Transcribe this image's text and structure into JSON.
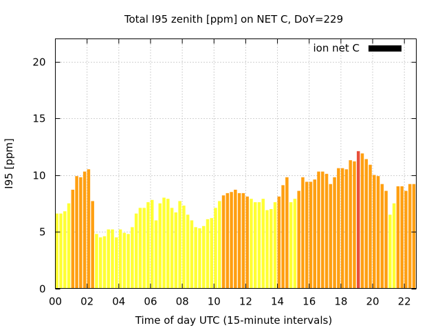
{
  "chart_data": {
    "type": "bar",
    "title": "Total I95 zenith [ppm] on NET C, DoY=229",
    "xlabel": "Time of day UTC (15-minute intervals)",
    "ylabel": "I95 [ppm]",
    "ylim": [
      0,
      22
    ],
    "xlim": [
      0,
      22.75
    ],
    "yticks": [
      0,
      5,
      10,
      15,
      20
    ],
    "xticks": [
      0,
      2,
      4,
      6,
      8,
      10,
      12,
      14,
      16,
      18,
      20,
      22
    ],
    "xtick_labels": [
      "00",
      "02",
      "04",
      "06",
      "08",
      "10",
      "12",
      "14",
      "16",
      "18",
      "20",
      "22"
    ],
    "grid": true,
    "legend": {
      "position": "top-right",
      "label": "ion net C",
      "color": "#000000"
    },
    "bar_interval_hours": 0.25,
    "colors": {
      "low": "#ffff33",
      "mid": "#ff9f11",
      "high": "#e8503a"
    },
    "times": [
      0.0,
      0.25,
      0.5,
      0.75,
      1.0,
      1.25,
      1.5,
      1.75,
      2.0,
      2.25,
      2.5,
      2.75,
      3.0,
      3.25,
      3.5,
      3.75,
      4.0,
      4.25,
      4.5,
      4.75,
      5.0,
      5.25,
      5.5,
      5.75,
      6.0,
      6.25,
      6.5,
      6.75,
      7.0,
      7.25,
      7.5,
      7.75,
      8.0,
      8.25,
      8.5,
      8.75,
      9.0,
      9.25,
      9.5,
      9.75,
      10.0,
      10.25,
      10.5,
      10.75,
      11.0,
      11.25,
      11.5,
      11.75,
      12.0,
      12.25,
      12.5,
      12.75,
      13.0,
      13.25,
      13.5,
      13.75,
      14.0,
      14.25,
      14.5,
      14.75,
      15.0,
      15.25,
      15.5,
      15.75,
      16.0,
      16.25,
      16.5,
      16.75,
      17.0,
      17.25,
      17.5,
      17.75,
      18.0,
      18.25,
      18.5,
      18.75,
      19.0,
      19.25,
      19.5,
      19.75,
      20.0,
      20.25,
      20.5,
      20.75,
      21.0,
      21.25,
      21.5,
      21.75,
      22.0,
      22.25,
      22.5
    ],
    "values": [
      6.6,
      6.6,
      6.8,
      7.5,
      8.7,
      9.9,
      9.8,
      10.3,
      10.5,
      7.7,
      4.8,
      4.5,
      4.6,
      5.2,
      5.2,
      4.5,
      5.2,
      4.9,
      4.8,
      5.4,
      6.6,
      7.1,
      7.1,
      7.6,
      7.8,
      6.0,
      7.5,
      8.0,
      7.9,
      7.1,
      6.7,
      7.7,
      7.3,
      6.5,
      6.0,
      5.4,
      5.3,
      5.5,
      6.1,
      6.2,
      7.1,
      7.7,
      8.2,
      8.4,
      8.5,
      8.7,
      8.4,
      8.4,
      8.1,
      7.9,
      7.6,
      7.6,
      7.9,
      6.9,
      7.0,
      7.6,
      8.1,
      9.1,
      9.8,
      7.6,
      7.9,
      8.6,
      9.8,
      9.4,
      9.4,
      9.6,
      10.3,
      10.3,
      10.1,
      9.2,
      9.8,
      10.6,
      10.6,
      10.5,
      11.3,
      11.2,
      12.1,
      11.9,
      11.4,
      10.9,
      10.0,
      9.9,
      9.2,
      8.6,
      6.5,
      7.5,
      9.0,
      9.0,
      8.6,
      9.2,
      9.2
    ],
    "level": [
      "low",
      "low",
      "low",
      "low",
      "mid",
      "mid",
      "mid",
      "mid",
      "mid",
      "mid",
      "low",
      "low",
      "low",
      "low",
      "low",
      "low",
      "low",
      "low",
      "low",
      "low",
      "low",
      "low",
      "low",
      "low",
      "low",
      "low",
      "low",
      "low",
      "low",
      "low",
      "low",
      "low",
      "low",
      "low",
      "low",
      "low",
      "low",
      "low",
      "low",
      "low",
      "low",
      "low",
      "mid",
      "mid",
      "mid",
      "mid",
      "mid",
      "mid",
      "mid",
      "low",
      "low",
      "low",
      "low",
      "low",
      "low",
      "low",
      "mid",
      "mid",
      "mid",
      "low",
      "low",
      "mid",
      "mid",
      "mid",
      "mid",
      "mid",
      "mid",
      "mid",
      "mid",
      "mid",
      "mid",
      "mid",
      "mid",
      "mid",
      "mid",
      "mid",
      "high",
      "mid",
      "mid",
      "mid",
      "mid",
      "mid",
      "mid",
      "mid",
      "low",
      "low",
      "mid",
      "mid",
      "mid",
      "mid",
      "mid"
    ]
  }
}
